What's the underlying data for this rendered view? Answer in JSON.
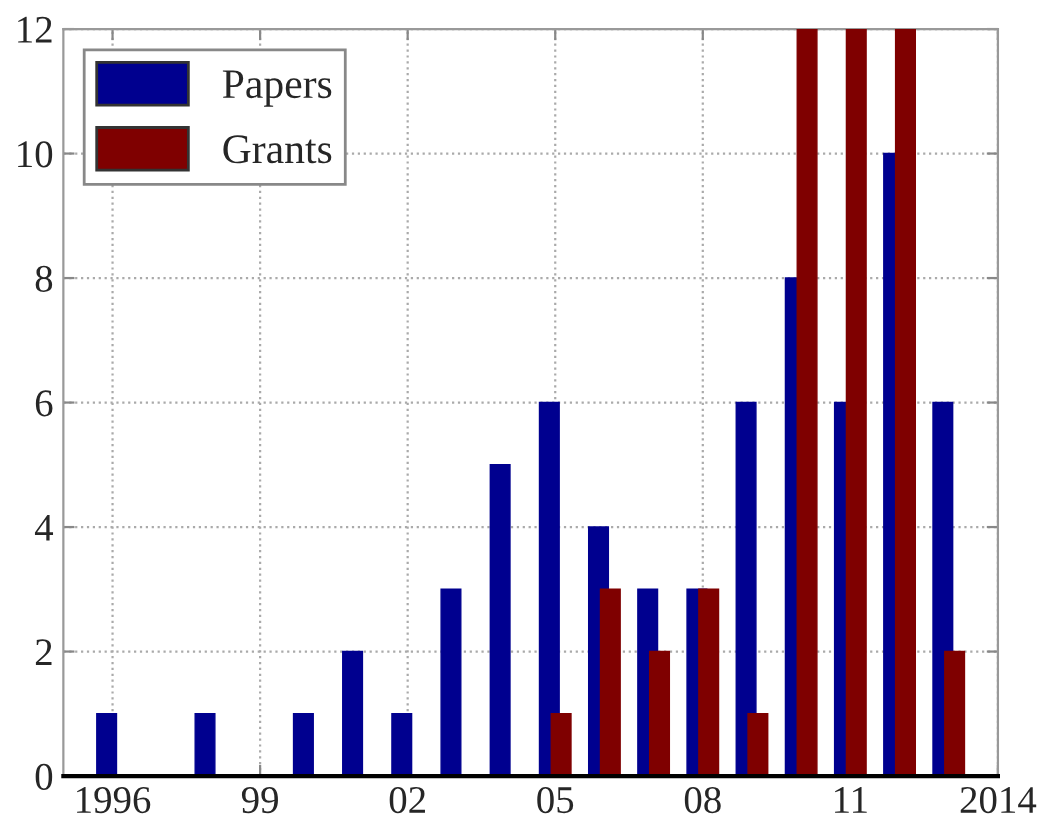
{
  "chart_data": {
    "type": "bar",
    "x": [
      1996,
      1997,
      1998,
      1999,
      2000,
      2001,
      2002,
      2003,
      2004,
      2005,
      2006,
      2007,
      2008,
      2009,
      2010,
      2011,
      2012,
      2013
    ],
    "series": [
      {
        "name": "Papers",
        "color": "#00008f",
        "values": [
          1,
          0,
          1,
          0,
          1,
          2,
          1,
          3,
          5,
          6,
          4,
          3,
          3,
          6,
          8,
          6,
          10,
          6
        ]
      },
      {
        "name": "Grants",
        "color": "#7f0000",
        "values": [
          0,
          0,
          0,
          0,
          0,
          0,
          0,
          0,
          0,
          1,
          3,
          2,
          3,
          1,
          12,
          12,
          12,
          2
        ]
      }
    ],
    "xlim": [
      1995,
      2014
    ],
    "xticks": [
      1996,
      {
        "value": 1999,
        "label": "99"
      },
      {
        "value": 2002,
        "label": "02"
      },
      {
        "value": 2005,
        "label": "05"
      },
      {
        "value": 2008,
        "label": "08"
      },
      {
        "value": 2011,
        "label": "11"
      },
      2014
    ],
    "ylim": [
      0,
      12
    ],
    "yticks": [
      0,
      2,
      4,
      6,
      8,
      10,
      12
    ],
    "grid": true,
    "legend": "top left"
  }
}
